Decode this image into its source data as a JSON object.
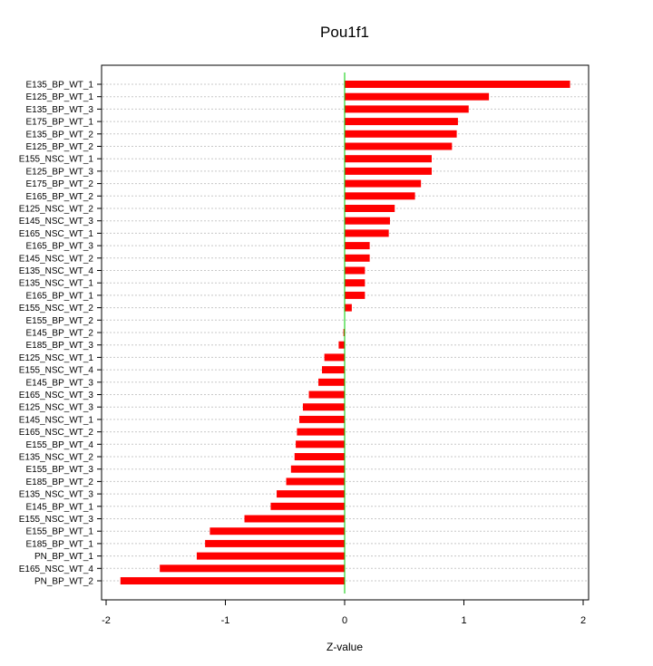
{
  "chart_data": {
    "type": "bar",
    "orientation": "horizontal",
    "title": "Pou1f1",
    "xlabel": "Z-value",
    "ylabel": "",
    "xlim": [
      -2,
      2
    ],
    "xticks": [
      "-2",
      "-1",
      "0",
      "1",
      "2"
    ],
    "grid": true,
    "bar_color": "#ff0000",
    "zero_line_color": "#00cc00",
    "categories": [
      "E135_BP_WT_1",
      "E125_BP_WT_1",
      "E135_BP_WT_3",
      "E175_BP_WT_1",
      "E135_BP_WT_2",
      "E125_BP_WT_2",
      "E155_NSC_WT_1",
      "E125_BP_WT_3",
      "E175_BP_WT_2",
      "E165_BP_WT_2",
      "E125_NSC_WT_2",
      "E145_NSC_WT_3",
      "E165_NSC_WT_1",
      "E165_BP_WT_3",
      "E145_NSC_WT_2",
      "E135_NSC_WT_4",
      "E135_NSC_WT_1",
      "E165_BP_WT_1",
      "E155_NSC_WT_2",
      "E155_BP_WT_2",
      "E145_BP_WT_2",
      "E185_BP_WT_3",
      "E125_NSC_WT_1",
      "E155_NSC_WT_4",
      "E145_BP_WT_3",
      "E165_NSC_WT_3",
      "E125_NSC_WT_3",
      "E145_NSC_WT_1",
      "E165_NSC_WT_2",
      "E155_BP_WT_4",
      "E135_NSC_WT_2",
      "E155_BP_WT_3",
      "E185_BP_WT_2",
      "E135_NSC_WT_3",
      "E145_BP_WT_1",
      "E155_NSC_WT_3",
      "E155_BP_WT_1",
      "E185_BP_WT_1",
      "PN_BP_WT_1",
      "E165_NSC_WT_4",
      "PN_BP_WT_2"
    ],
    "values": [
      1.89,
      1.21,
      1.04,
      0.95,
      0.94,
      0.9,
      0.73,
      0.73,
      0.64,
      0.59,
      0.42,
      0.38,
      0.37,
      0.21,
      0.21,
      0.17,
      0.17,
      0.17,
      0.06,
      0.0,
      -0.01,
      -0.05,
      -0.17,
      -0.19,
      -0.22,
      -0.3,
      -0.35,
      -0.38,
      -0.4,
      -0.41,
      -0.42,
      -0.45,
      -0.49,
      -0.57,
      -0.62,
      -0.84,
      -1.13,
      -1.17,
      -1.24,
      -1.55,
      -1.88
    ]
  }
}
